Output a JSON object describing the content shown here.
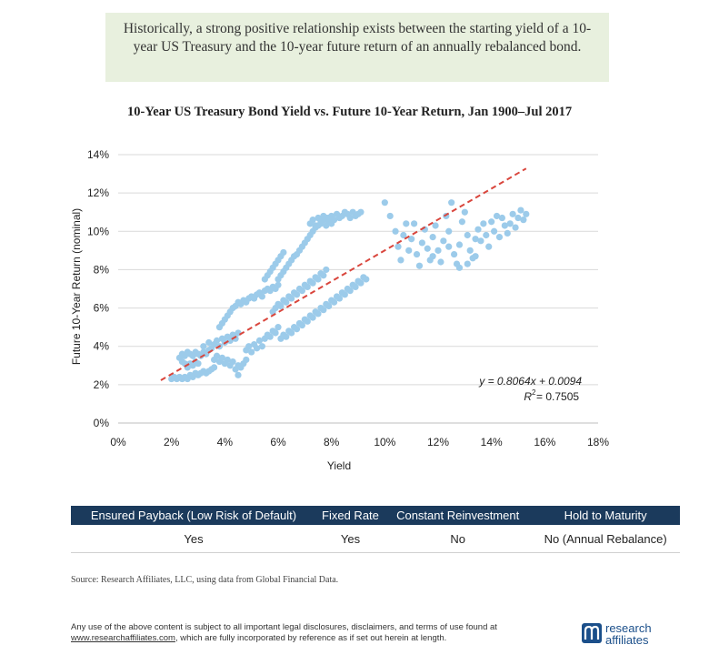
{
  "callout": {
    "text": "Historically, a strong positive relationship exists between the starting yield of a 10-year US Treasury and the 10-year future return of an annually rebalanced bond."
  },
  "chart_data": {
    "type": "scatter",
    "title": "10-Year US Treasury Bond Yield vs. Future 10-Year Return, Jan 1900–Jul 2017",
    "xlabel": "Yield",
    "ylabel": "Future 10-Year Return (nominal)",
    "xlim": [
      0,
      0.18
    ],
    "ylim": [
      0,
      0.14
    ],
    "xticks": [
      "0%",
      "2%",
      "4%",
      "6%",
      "8%",
      "10%",
      "12%",
      "14%",
      "16%",
      "18%"
    ],
    "yticks": [
      "0%",
      "2%",
      "4%",
      "6%",
      "8%",
      "10%",
      "12%",
      "14%"
    ],
    "grid": "horizontal",
    "point_color": "#9ccbea",
    "trend_color": "#d9463d",
    "trendline": {
      "slope": 0.8064,
      "intercept": 0.0094,
      "x_range": [
        0.016,
        0.153
      ]
    },
    "equation": "y = 0.8064x + 0.0094",
    "r2_label": "R",
    "r2_value": " = 0.7505",
    "points": [
      [
        0.02,
        0.023
      ],
      [
        0.021,
        0.024
      ],
      [
        0.022,
        0.023
      ],
      [
        0.023,
        0.024
      ],
      [
        0.024,
        0.023
      ],
      [
        0.025,
        0.024
      ],
      [
        0.026,
        0.023
      ],
      [
        0.027,
        0.025
      ],
      [
        0.028,
        0.024
      ],
      [
        0.029,
        0.026
      ],
      [
        0.03,
        0.025
      ],
      [
        0.031,
        0.026
      ],
      [
        0.032,
        0.027
      ],
      [
        0.033,
        0.026
      ],
      [
        0.034,
        0.027
      ],
      [
        0.035,
        0.028
      ],
      [
        0.036,
        0.029
      ],
      [
        0.023,
        0.034
      ],
      [
        0.024,
        0.036
      ],
      [
        0.025,
        0.035
      ],
      [
        0.026,
        0.037
      ],
      [
        0.027,
        0.036
      ],
      [
        0.028,
        0.035
      ],
      [
        0.029,
        0.037
      ],
      [
        0.03,
        0.036
      ],
      [
        0.031,
        0.035
      ],
      [
        0.032,
        0.037
      ],
      [
        0.033,
        0.036
      ],
      [
        0.034,
        0.038
      ],
      [
        0.024,
        0.032
      ],
      [
        0.025,
        0.031
      ],
      [
        0.026,
        0.029
      ],
      [
        0.027,
        0.031
      ],
      [
        0.028,
        0.03
      ],
      [
        0.029,
        0.032
      ],
      [
        0.03,
        0.031
      ],
      [
        0.032,
        0.04
      ],
      [
        0.034,
        0.042
      ],
      [
        0.035,
        0.039
      ],
      [
        0.036,
        0.041
      ],
      [
        0.037,
        0.043
      ],
      [
        0.038,
        0.04
      ],
      [
        0.039,
        0.044
      ],
      [
        0.04,
        0.042
      ],
      [
        0.041,
        0.045
      ],
      [
        0.042,
        0.043
      ],
      [
        0.043,
        0.046
      ],
      [
        0.044,
        0.044
      ],
      [
        0.045,
        0.047
      ],
      [
        0.036,
        0.033
      ],
      [
        0.037,
        0.035
      ],
      [
        0.038,
        0.032
      ],
      [
        0.039,
        0.034
      ],
      [
        0.04,
        0.031
      ],
      [
        0.041,
        0.033
      ],
      [
        0.042,
        0.03
      ],
      [
        0.043,
        0.032
      ],
      [
        0.044,
        0.028
      ],
      [
        0.045,
        0.03
      ],
      [
        0.046,
        0.029
      ],
      [
        0.047,
        0.031
      ],
      [
        0.048,
        0.033
      ],
      [
        0.045,
        0.025
      ],
      [
        0.038,
        0.05
      ],
      [
        0.039,
        0.052
      ],
      [
        0.04,
        0.054
      ],
      [
        0.041,
        0.056
      ],
      [
        0.042,
        0.058
      ],
      [
        0.043,
        0.06
      ],
      [
        0.044,
        0.061
      ],
      [
        0.045,
        0.063
      ],
      [
        0.046,
        0.062
      ],
      [
        0.047,
        0.064
      ],
      [
        0.048,
        0.063
      ],
      [
        0.049,
        0.065
      ],
      [
        0.05,
        0.066
      ],
      [
        0.051,
        0.065
      ],
      [
        0.052,
        0.067
      ],
      [
        0.053,
        0.068
      ],
      [
        0.054,
        0.066
      ],
      [
        0.055,
        0.069
      ],
      [
        0.056,
        0.07
      ],
      [
        0.057,
        0.069
      ],
      [
        0.058,
        0.071
      ],
      [
        0.059,
        0.07
      ],
      [
        0.06,
        0.072
      ],
      [
        0.048,
        0.038
      ],
      [
        0.049,
        0.04
      ],
      [
        0.05,
        0.037
      ],
      [
        0.051,
        0.041
      ],
      [
        0.052,
        0.039
      ],
      [
        0.053,
        0.043
      ],
      [
        0.054,
        0.04
      ],
      [
        0.055,
        0.044
      ],
      [
        0.056,
        0.046
      ],
      [
        0.057,
        0.045
      ],
      [
        0.058,
        0.048
      ],
      [
        0.059,
        0.047
      ],
      [
        0.06,
        0.05
      ],
      [
        0.061,
        0.044
      ],
      [
        0.062,
        0.046
      ],
      [
        0.063,
        0.045
      ],
      [
        0.064,
        0.048
      ],
      [
        0.065,
        0.047
      ],
      [
        0.066,
        0.05
      ],
      [
        0.067,
        0.049
      ],
      [
        0.068,
        0.052
      ],
      [
        0.069,
        0.051
      ],
      [
        0.07,
        0.054
      ],
      [
        0.071,
        0.053
      ],
      [
        0.072,
        0.056
      ],
      [
        0.073,
        0.055
      ],
      [
        0.074,
        0.058
      ],
      [
        0.075,
        0.057
      ],
      [
        0.076,
        0.06
      ],
      [
        0.077,
        0.059
      ],
      [
        0.078,
        0.062
      ],
      [
        0.079,
        0.061
      ],
      [
        0.08,
        0.064
      ],
      [
        0.081,
        0.063
      ],
      [
        0.082,
        0.066
      ],
      [
        0.083,
        0.065
      ],
      [
        0.084,
        0.068
      ],
      [
        0.085,
        0.067
      ],
      [
        0.086,
        0.07
      ],
      [
        0.087,
        0.069
      ],
      [
        0.088,
        0.072
      ],
      [
        0.089,
        0.071
      ],
      [
        0.09,
        0.074
      ],
      [
        0.091,
        0.073
      ],
      [
        0.092,
        0.076
      ],
      [
        0.093,
        0.075
      ],
      [
        0.058,
        0.058
      ],
      [
        0.059,
        0.06
      ],
      [
        0.06,
        0.062
      ],
      [
        0.061,
        0.061
      ],
      [
        0.062,
        0.064
      ],
      [
        0.063,
        0.063
      ],
      [
        0.064,
        0.066
      ],
      [
        0.065,
        0.065
      ],
      [
        0.066,
        0.068
      ],
      [
        0.067,
        0.067
      ],
      [
        0.068,
        0.07
      ],
      [
        0.069,
        0.069
      ],
      [
        0.07,
        0.072
      ],
      [
        0.071,
        0.071
      ],
      [
        0.072,
        0.074
      ],
      [
        0.073,
        0.073
      ],
      [
        0.074,
        0.076
      ],
      [
        0.075,
        0.075
      ],
      [
        0.076,
        0.078
      ],
      [
        0.077,
        0.077
      ],
      [
        0.078,
        0.08
      ],
      [
        0.06,
        0.075
      ],
      [
        0.061,
        0.077
      ],
      [
        0.062,
        0.079
      ],
      [
        0.063,
        0.081
      ],
      [
        0.064,
        0.083
      ],
      [
        0.065,
        0.085
      ],
      [
        0.066,
        0.087
      ],
      [
        0.067,
        0.088
      ],
      [
        0.068,
        0.09
      ],
      [
        0.069,
        0.092
      ],
      [
        0.07,
        0.094
      ],
      [
        0.071,
        0.096
      ],
      [
        0.072,
        0.098
      ],
      [
        0.073,
        0.1
      ],
      [
        0.074,
        0.102
      ],
      [
        0.075,
        0.103
      ],
      [
        0.076,
        0.105
      ],
      [
        0.077,
        0.106
      ],
      [
        0.078,
        0.107
      ],
      [
        0.079,
        0.105
      ],
      [
        0.08,
        0.108
      ],
      [
        0.081,
        0.106
      ],
      [
        0.082,
        0.109
      ],
      [
        0.083,
        0.107
      ],
      [
        0.084,
        0.108
      ],
      [
        0.085,
        0.11
      ],
      [
        0.086,
        0.109
      ],
      [
        0.087,
        0.107
      ],
      [
        0.088,
        0.11
      ],
      [
        0.089,
        0.108
      ],
      [
        0.09,
        0.109
      ],
      [
        0.091,
        0.11
      ],
      [
        0.072,
        0.104
      ],
      [
        0.073,
        0.106
      ],
      [
        0.074,
        0.103
      ],
      [
        0.075,
        0.107
      ],
      [
        0.076,
        0.104
      ],
      [
        0.077,
        0.108
      ],
      [
        0.078,
        0.103
      ],
      [
        0.079,
        0.107
      ],
      [
        0.08,
        0.104
      ],
      [
        0.055,
        0.075
      ],
      [
        0.056,
        0.077
      ],
      [
        0.057,
        0.079
      ],
      [
        0.058,
        0.081
      ],
      [
        0.059,
        0.083
      ],
      [
        0.06,
        0.085
      ],
      [
        0.061,
        0.087
      ],
      [
        0.062,
        0.089
      ],
      [
        0.1,
        0.115
      ],
      [
        0.102,
        0.108
      ],
      [
        0.104,
        0.1
      ],
      [
        0.105,
        0.092
      ],
      [
        0.106,
        0.085
      ],
      [
        0.107,
        0.098
      ],
      [
        0.108,
        0.104
      ],
      [
        0.11,
        0.096
      ],
      [
        0.112,
        0.088
      ],
      [
        0.113,
        0.082
      ],
      [
        0.114,
        0.094
      ],
      [
        0.115,
        0.101
      ],
      [
        0.116,
        0.091
      ],
      [
        0.117,
        0.085
      ],
      [
        0.118,
        0.097
      ],
      [
        0.119,
        0.103
      ],
      [
        0.12,
        0.09
      ],
      [
        0.121,
        0.084
      ],
      [
        0.122,
        0.095
      ],
      [
        0.123,
        0.108
      ],
      [
        0.124,
        0.1
      ],
      [
        0.125,
        0.115
      ],
      [
        0.126,
        0.088
      ],
      [
        0.127,
        0.083
      ],
      [
        0.128,
        0.093
      ],
      [
        0.129,
        0.105
      ],
      [
        0.13,
        0.11
      ],
      [
        0.131,
        0.098
      ],
      [
        0.132,
        0.09
      ],
      [
        0.133,
        0.086
      ],
      [
        0.134,
        0.096
      ],
      [
        0.135,
        0.101
      ],
      [
        0.136,
        0.095
      ],
      [
        0.137,
        0.104
      ],
      [
        0.138,
        0.098
      ],
      [
        0.139,
        0.092
      ],
      [
        0.14,
        0.105
      ],
      [
        0.141,
        0.1
      ],
      [
        0.142,
        0.108
      ],
      [
        0.143,
        0.097
      ],
      [
        0.144,
        0.107
      ],
      [
        0.145,
        0.103
      ],
      [
        0.146,
        0.099
      ],
      [
        0.147,
        0.104
      ],
      [
        0.148,
        0.109
      ],
      [
        0.149,
        0.102
      ],
      [
        0.15,
        0.107
      ],
      [
        0.151,
        0.111
      ],
      [
        0.152,
        0.106
      ],
      [
        0.153,
        0.109
      ],
      [
        0.109,
        0.09
      ],
      [
        0.111,
        0.104
      ],
      [
        0.118,
        0.087
      ],
      [
        0.124,
        0.092
      ],
      [
        0.131,
        0.083
      ],
      [
        0.134,
        0.087
      ],
      [
        0.128,
        0.081
      ]
    ]
  },
  "table": {
    "headers": [
      "Ensured Payback (Low Risk of Default)",
      "Fixed Rate",
      "Constant Reinvestment",
      "Hold to Maturity"
    ],
    "row": [
      "Yes",
      "Yes",
      "No",
      "No (Annual Rebalance)"
    ]
  },
  "source": "Source:  Research Affiliates, LLC, using data from Global Financial Data.",
  "disclaimer": {
    "line1": "Any use of the above content is subject to all important legal disclosures, disclaimers, and terms of use found at",
    "link": "www.researchaffiliates.com",
    "line2": ", which are fully incorporated by reference as if set out herein at length."
  },
  "logo": {
    "line1": "research",
    "line2": "affiliates",
    "mark_icon": "research-affiliates-logo-icon",
    "color": "#1b4f8a"
  }
}
